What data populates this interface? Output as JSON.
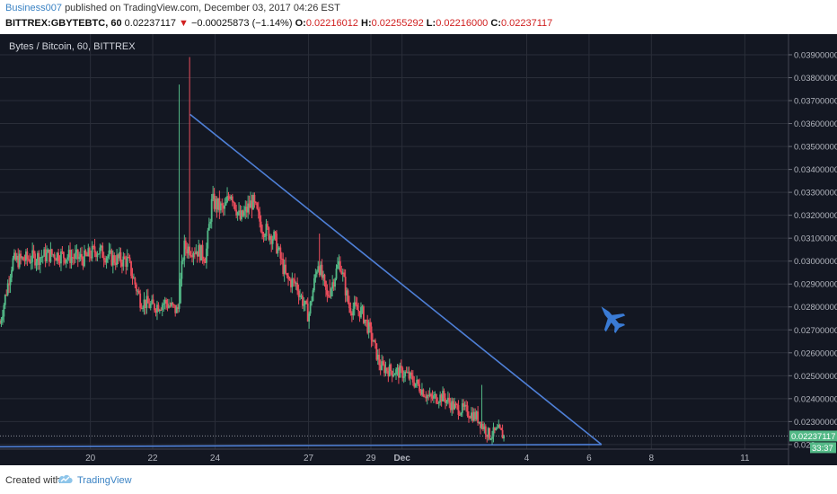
{
  "header": {
    "author": "Business007",
    "published_text": "published on TradingView.com, December 03, 2017 04:26 EST",
    "symbol": "BITTREX:GBYTEBTC, 60",
    "last": "0.02237117",
    "arrow": "▼",
    "change": "−0.00025873 (−1.14%)",
    "o_label": "O:",
    "o_value": "0.02216012",
    "h_label": "H:",
    "h_value": "0.02255292",
    "l_label": "L:",
    "l_value": "0.02216000",
    "c_label": "C:",
    "c_value": "0.02237117"
  },
  "footer": {
    "created_label": "Created with",
    "brand": "TradingView",
    "logo_icon": "tradingview-cloud-icon"
  },
  "colors": {
    "background": "#131722",
    "grid": "#2a2e39",
    "up": "#53b987",
    "down": "#eb4d5c",
    "trendline": "#4e7fd6",
    "price_tag": "#53b987",
    "icon": "#3a7bd5"
  },
  "annotation_icon": "fighter-jet-icon",
  "chart_data": {
    "type": "candlestick",
    "title": "Bytes / Bitcoin, 60, BITTREX",
    "ylim": [
      0.0218,
      0.0399
    ],
    "y_ticks": [
      "0.03900000",
      "0.03800000",
      "0.03700000",
      "0.03600000",
      "0.03500000",
      "0.03400000",
      "0.03300000",
      "0.03200000",
      "0.03100000",
      "0.03000000",
      "0.02900000",
      "0.02800000",
      "0.02700000",
      "0.02600000",
      "0.02500000",
      "0.02400000",
      "0.02300000",
      "0.022"
    ],
    "x_ticks": [
      {
        "label": "20",
        "day": 20
      },
      {
        "label": "22",
        "day": 22
      },
      {
        "label": "24",
        "day": 24
      },
      {
        "label": "27",
        "day": 27
      },
      {
        "label": "29",
        "day": 29
      },
      {
        "label": "Dec",
        "day": 30
      },
      {
        "label": "4",
        "day": 34
      },
      {
        "label": "6",
        "day": 36
      },
      {
        "label": "8",
        "day": 38
      },
      {
        "label": "11",
        "day": 41
      }
    ],
    "x_range_days": [
      17.1,
      42.4
    ],
    "last_price": "0.02237117",
    "price_tag_secondary": "33:37",
    "trendlines": [
      {
        "from": [
          23.2,
          0.0364
        ],
        "to": [
          36.4,
          0.022
        ]
      },
      {
        "from": [
          17.1,
          0.0219
        ],
        "to": [
          36.4,
          0.022
        ]
      }
    ],
    "close_path": [
      [
        17.1,
        0.0273
      ],
      [
        17.5,
        0.03
      ],
      [
        18.0,
        0.0301
      ],
      [
        18.8,
        0.0303
      ],
      [
        19.8,
        0.0301
      ],
      [
        20.2,
        0.0305
      ],
      [
        20.7,
        0.0301
      ],
      [
        21.2,
        0.03
      ],
      [
        21.6,
        0.0283
      ],
      [
        22.0,
        0.028
      ],
      [
        22.4,
        0.0282
      ],
      [
        22.8,
        0.0278
      ],
      [
        23.0,
        0.0306
      ],
      [
        23.4,
        0.0305
      ],
      [
        23.7,
        0.0302
      ],
      [
        23.9,
        0.0326
      ],
      [
        24.3,
        0.0322
      ],
      [
        24.5,
        0.0331
      ],
      [
        24.8,
        0.0318
      ],
      [
        25.2,
        0.0326
      ],
      [
        25.5,
        0.0315
      ],
      [
        25.9,
        0.031
      ],
      [
        26.3,
        0.0292
      ],
      [
        26.6,
        0.029
      ],
      [
        27.0,
        0.0276
      ],
      [
        27.3,
        0.03
      ],
      [
        27.6,
        0.0284
      ],
      [
        28.0,
        0.03
      ],
      [
        28.3,
        0.028
      ],
      [
        28.7,
        0.0278
      ],
      [
        29.0,
        0.0268
      ],
      [
        29.3,
        0.0254
      ],
      [
        29.7,
        0.0252
      ],
      [
        30.1,
        0.0251
      ],
      [
        30.5,
        0.0246
      ],
      [
        30.9,
        0.024
      ],
      [
        31.3,
        0.0241
      ],
      [
        31.7,
        0.0236
      ],
      [
        32.0,
        0.0235
      ],
      [
        32.4,
        0.0232
      ],
      [
        32.8,
        0.0224
      ],
      [
        33.1,
        0.0226
      ],
      [
        33.3,
        0.0223
      ]
    ]
  }
}
